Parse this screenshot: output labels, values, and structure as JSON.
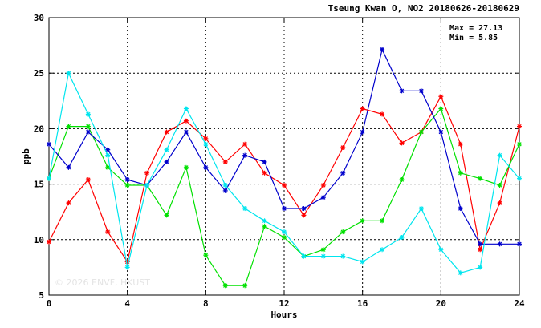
{
  "chart_data": {
    "type": "line",
    "title": "Tseung Kwan O, NO2 20180626-20180629",
    "xlabel": "Hours",
    "ylabel": "ppb",
    "xlim": [
      0,
      24
    ],
    "ylim": [
      5,
      30
    ],
    "x_ticks": [
      "0",
      "4",
      "8",
      "12",
      "16",
      "20",
      "24"
    ],
    "y_ticks": [
      "5",
      "10",
      "15",
      "20",
      "25",
      "30"
    ],
    "grid": true,
    "stats": [
      "Max = 27.13",
      "Min =  5.85"
    ],
    "watermark": "© 2026  ENVF, HKUST",
    "series": [
      {
        "color": "#ff0000",
        "x": [
          0,
          1,
          2,
          3,
          4,
          5,
          6,
          7,
          8,
          9,
          10,
          11,
          12,
          13,
          14,
          15,
          16,
          17,
          18,
          19,
          20,
          21,
          22,
          23,
          24
        ],
        "values": [
          9.8,
          13.3,
          15.4,
          10.7,
          8.0,
          16.0,
          19.7,
          20.7,
          19.1,
          17.0,
          18.6,
          16.0,
          14.9,
          12.2,
          14.9,
          18.3,
          21.8,
          21.3,
          18.7,
          19.7,
          22.9,
          18.6,
          9.1,
          13.3,
          20.2
        ]
      },
      {
        "color": "#00e000",
        "x": [
          0,
          1,
          2,
          3,
          4,
          5,
          6,
          7,
          8,
          9,
          10,
          11,
          12,
          13,
          14,
          15,
          16,
          17,
          18,
          19,
          20,
          21,
          22,
          23,
          24
        ],
        "values": [
          15.5,
          20.2,
          20.2,
          16.5,
          14.9,
          14.9,
          12.2,
          16.5,
          8.6,
          5.85,
          5.85,
          11.2,
          10.2,
          8.5,
          9.1,
          10.7,
          11.7,
          11.7,
          15.4,
          19.7,
          21.8,
          16.0,
          15.5,
          14.9,
          18.6
        ]
      },
      {
        "color": "#0000cc",
        "x": [
          0,
          1,
          2,
          3,
          4,
          5,
          6,
          7,
          8,
          9,
          10,
          11,
          12,
          13,
          14,
          15,
          16,
          17,
          18,
          19,
          20,
          21,
          22,
          23,
          24
        ],
        "values": [
          18.6,
          16.5,
          19.7,
          18.1,
          15.4,
          14.9,
          17.0,
          19.7,
          16.5,
          14.4,
          17.6,
          17.0,
          12.8,
          12.8,
          13.8,
          16.0,
          19.7,
          27.13,
          23.4,
          23.4,
          19.7,
          12.8,
          9.6,
          9.6,
          9.6
        ]
      },
      {
        "color": "#00e5ee",
        "x": [
          0,
          1,
          2,
          3,
          4,
          5,
          6,
          7,
          8,
          9,
          10,
          11,
          12,
          13,
          14,
          15,
          16,
          17,
          18,
          19,
          20,
          21,
          22,
          23,
          24
        ],
        "values": [
          15.5,
          25.0,
          21.3,
          17.6,
          7.5,
          14.9,
          18.1,
          21.8,
          18.6,
          14.9,
          12.8,
          11.7,
          10.7,
          8.5,
          8.5,
          8.5,
          8.0,
          9.1,
          10.2,
          12.8,
          9.1,
          7.0,
          7.5,
          17.6,
          15.5
        ]
      }
    ]
  }
}
